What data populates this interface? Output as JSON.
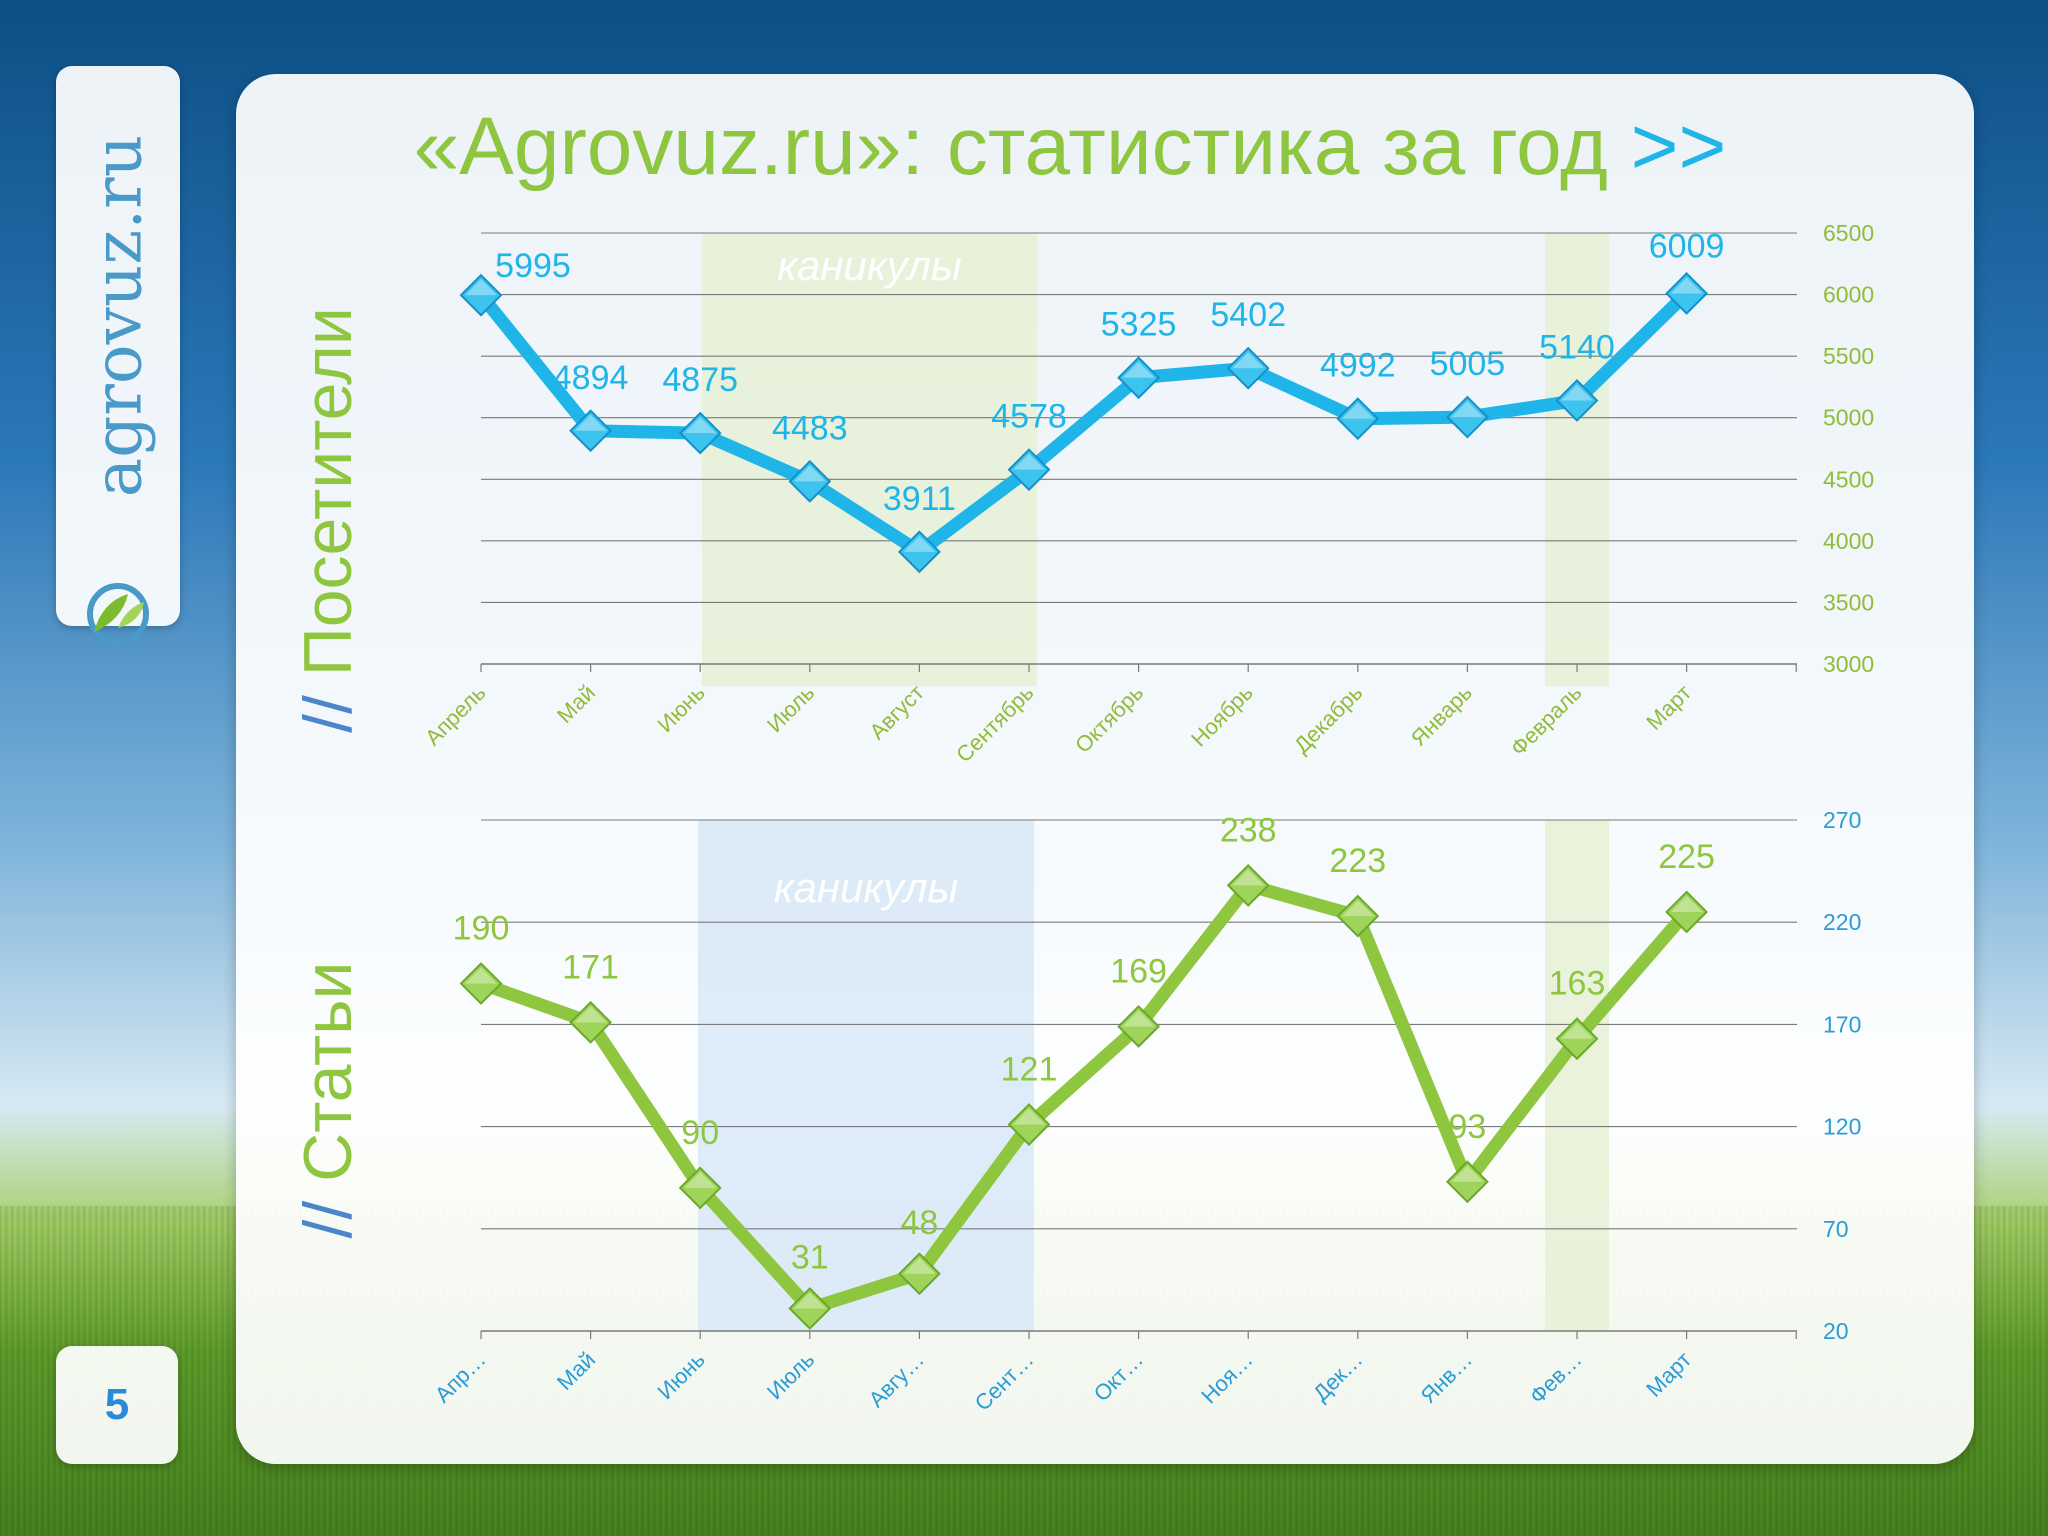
{
  "page": {
    "title": "«Agrovuz.ru»: статистика за год",
    "title_arrows": ">>",
    "logo_text": "agrovuz.ru",
    "page_number": "5",
    "slash": "//",
    "label_visitors": "Посетители",
    "label_articles": "Статьи"
  },
  "colors": {
    "visitors_line": "#1fb5e8",
    "articles_line": "#8ec63f",
    "shade_green": "#e6f0d5",
    "shade_blue": "#d8e8f8"
  },
  "chart_data": [
    {
      "type": "line",
      "categories": [
        "Апрель",
        "Май",
        "Июнь",
        "Июль",
        "Август",
        "Сентябрь",
        "Октябрь",
        "Ноябрь",
        "Декабрь",
        "Январь",
        "Февраль",
        "Март"
      ],
      "series": [
        {
          "values": [
            5995,
            4894,
            4875,
            4483,
            3911,
            4578,
            5325,
            5402,
            4992,
            5005,
            5140,
            6009
          ]
        }
      ],
      "ylim": [
        3000,
        6500
      ],
      "yticks": [
        3000,
        3500,
        4000,
        4500,
        5000,
        5500,
        6000,
        6500
      ],
      "ytick_labels": [
        "3000",
        "3500",
        "4000",
        "4500",
        "5000",
        "5500",
        "6000",
        "6500"
      ],
      "y_axis_side": "right",
      "grid": true,
      "annotations": [
        {
          "text": "каникулы",
          "from": "Июнь",
          "to": "Август"
        },
        {
          "text": "",
          "from": "Февраль",
          "to": "Февраль"
        }
      ]
    },
    {
      "type": "line",
      "categories": [
        "Апр…",
        "Май",
        "Июнь",
        "Июль",
        "Авгу…",
        "Сент…",
        "Окт…",
        "Ноя…",
        "Дек…",
        "Янв…",
        "Фев…",
        "Март"
      ],
      "series": [
        {
          "values": [
            190,
            171,
            90,
            31,
            48,
            121,
            169,
            238,
            223,
            93,
            163,
            225
          ]
        }
      ],
      "ylim": [
        20,
        270
      ],
      "yticks": [
        20,
        70,
        120,
        170,
        220,
        270
      ],
      "ytick_labels": [
        "20",
        "70",
        "120",
        "170",
        "220",
        "270"
      ],
      "y_axis_side": "right",
      "grid": true,
      "annotations": [
        {
          "text": "каникулы",
          "from": "Июнь",
          "to": "Август"
        },
        {
          "text": "",
          "from": "Февраль",
          "to": "Февраль"
        }
      ]
    }
  ]
}
